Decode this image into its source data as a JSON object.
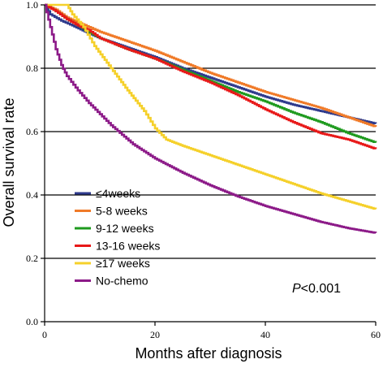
{
  "chart_data": {
    "type": "line",
    "title": "",
    "xlabel": "Months after diagnosis",
    "ylabel": "Overall survival rate",
    "xlim": [
      0,
      60
    ],
    "ylim": [
      0,
      1.0
    ],
    "x_ticks": [
      0,
      20,
      40,
      60
    ],
    "y_ticks": [
      0.0,
      0.2,
      0.4,
      0.6,
      0.8,
      1.0
    ],
    "x_tick_labels": [
      "0",
      "20",
      "40",
      "60"
    ],
    "y_tick_labels": [
      "0.0",
      "0.2",
      "0.4",
      "0.6",
      "0.8",
      "1.0"
    ],
    "grid": "horizontal",
    "legend_position": "bottom-left",
    "annotation": {
      "italic": "P",
      "rest": "<0.001"
    },
    "series": [
      {
        "name": "≤4weeks",
        "color": "#2e3a8c",
        "points": [
          [
            0,
            1.0
          ],
          [
            1,
            0.97
          ],
          [
            3,
            0.95
          ],
          [
            5,
            0.935
          ],
          [
            8,
            0.91
          ],
          [
            10,
            0.895
          ],
          [
            15,
            0.865
          ],
          [
            20,
            0.835
          ],
          [
            25,
            0.8
          ],
          [
            30,
            0.77
          ],
          [
            35,
            0.74
          ],
          [
            40,
            0.71
          ],
          [
            45,
            0.685
          ],
          [
            50,
            0.665
          ],
          [
            55,
            0.645
          ],
          [
            60,
            0.625
          ]
        ]
      },
      {
        "name": "5-8 weeks",
        "color": "#f07a28",
        "points": [
          [
            0,
            1.0
          ],
          [
            2,
            0.985
          ],
          [
            4,
            0.96
          ],
          [
            6,
            0.945
          ],
          [
            8,
            0.93
          ],
          [
            10,
            0.915
          ],
          [
            15,
            0.885
          ],
          [
            20,
            0.855
          ],
          [
            25,
            0.82
          ],
          [
            30,
            0.785
          ],
          [
            35,
            0.755
          ],
          [
            40,
            0.725
          ],
          [
            45,
            0.7
          ],
          [
            50,
            0.675
          ],
          [
            55,
            0.645
          ],
          [
            60,
            0.615
          ]
        ]
      },
      {
        "name": "9-12 weeks",
        "color": "#1e9a1e",
        "points": [
          [
            0,
            1.0
          ],
          [
            2,
            0.98
          ],
          [
            4,
            0.955
          ],
          [
            6,
            0.935
          ],
          [
            8,
            0.915
          ],
          [
            10,
            0.895
          ],
          [
            15,
            0.86
          ],
          [
            20,
            0.83
          ],
          [
            25,
            0.795
          ],
          [
            30,
            0.76
          ],
          [
            35,
            0.725
          ],
          [
            40,
            0.695
          ],
          [
            45,
            0.66
          ],
          [
            50,
            0.63
          ],
          [
            55,
            0.595
          ],
          [
            60,
            0.565
          ]
        ]
      },
      {
        "name": "13-16 weeks",
        "color": "#e81818",
        "points": [
          [
            0,
            1.0
          ],
          [
            2,
            0.98
          ],
          [
            4,
            0.955
          ],
          [
            6,
            0.935
          ],
          [
            8,
            0.92
          ],
          [
            10,
            0.895
          ],
          [
            15,
            0.86
          ],
          [
            20,
            0.83
          ],
          [
            25,
            0.79
          ],
          [
            30,
            0.755
          ],
          [
            35,
            0.715
          ],
          [
            40,
            0.67
          ],
          [
            45,
            0.63
          ],
          [
            50,
            0.595
          ],
          [
            55,
            0.575
          ],
          [
            60,
            0.545
          ]
        ]
      },
      {
        "name": "≥17 weeks",
        "color": "#f5d02a",
        "points": [
          [
            0,
            1.0
          ],
          [
            4,
            1.0
          ],
          [
            5,
            0.97
          ],
          [
            7,
            0.93
          ],
          [
            9,
            0.87
          ],
          [
            12,
            0.8
          ],
          [
            15,
            0.73
          ],
          [
            18,
            0.665
          ],
          [
            20,
            0.61
          ],
          [
            22,
            0.575
          ],
          [
            25,
            0.555
          ],
          [
            30,
            0.525
          ],
          [
            35,
            0.495
          ],
          [
            40,
            0.465
          ],
          [
            45,
            0.435
          ],
          [
            50,
            0.405
          ],
          [
            55,
            0.38
          ],
          [
            60,
            0.355
          ]
        ]
      },
      {
        "name": "No-chemo",
        "color": "#8c1a88",
        "points": [
          [
            0,
            1.0
          ],
          [
            1,
            0.93
          ],
          [
            2,
            0.86
          ],
          [
            3,
            0.81
          ],
          [
            4,
            0.775
          ],
          [
            6,
            0.73
          ],
          [
            8,
            0.69
          ],
          [
            10,
            0.655
          ],
          [
            12,
            0.62
          ],
          [
            14,
            0.59
          ],
          [
            16,
            0.56
          ],
          [
            20,
            0.515
          ],
          [
            25,
            0.47
          ],
          [
            30,
            0.43
          ],
          [
            35,
            0.395
          ],
          [
            40,
            0.365
          ],
          [
            45,
            0.34
          ],
          [
            50,
            0.315
          ],
          [
            55,
            0.295
          ],
          [
            60,
            0.28
          ]
        ]
      }
    ]
  }
}
